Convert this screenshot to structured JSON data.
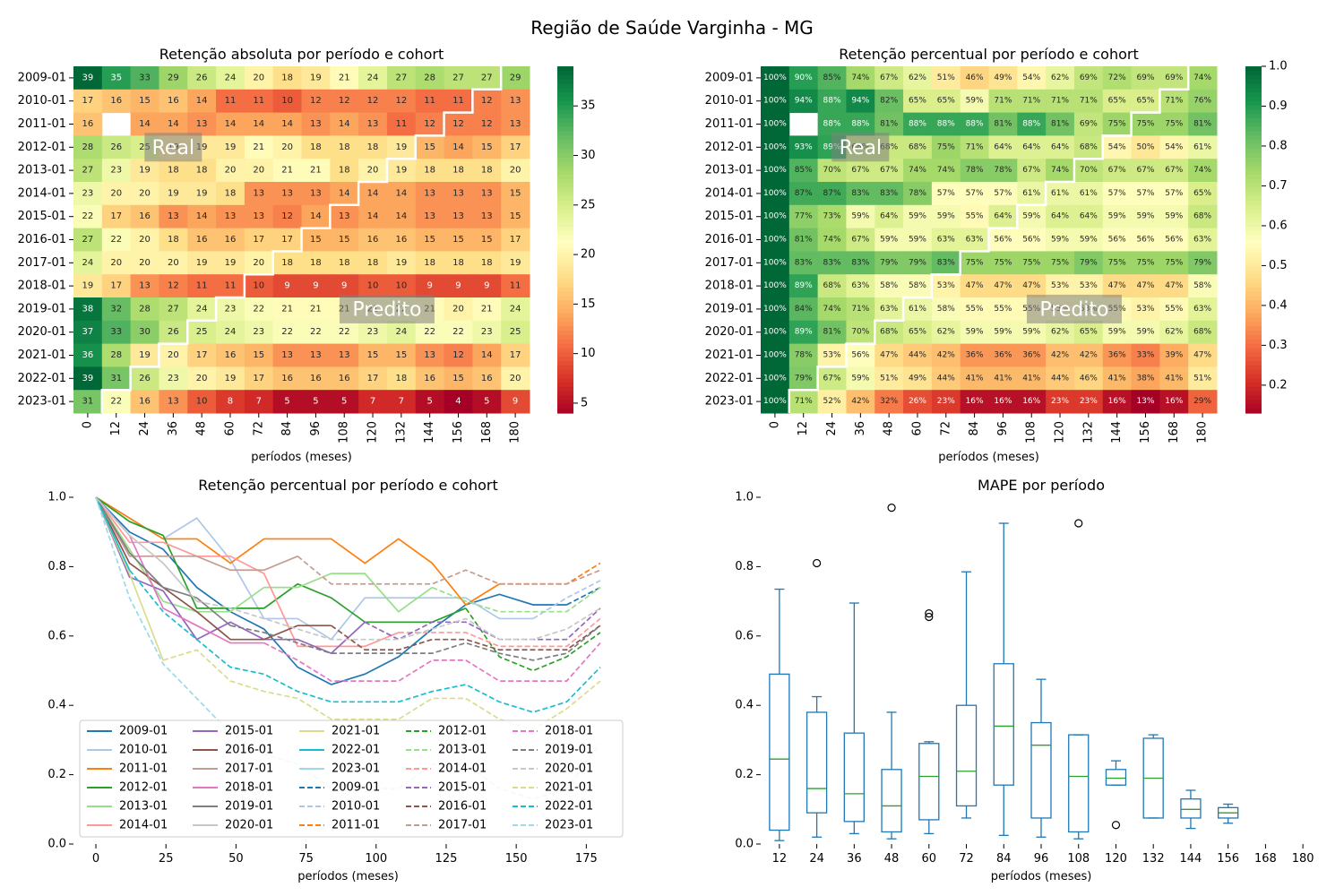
{
  "suptitle": "Região de Saúde Varginha - MG",
  "chart_data": [
    {
      "type": "heatmap",
      "title": "Retenção absoluta por período e cohort",
      "xlabel": "períodos (meses)",
      "ylabel": "",
      "x": [
        "0",
        "12",
        "24",
        "36",
        "48",
        "60",
        "72",
        "84",
        "96",
        "108",
        "120",
        "132",
        "144",
        "156",
        "168",
        "180"
      ],
      "y": [
        "2009-01",
        "2010-01",
        "2011-01",
        "2012-01",
        "2013-01",
        "2014-01",
        "2015-01",
        "2016-01",
        "2017-01",
        "2018-01",
        "2019-01",
        "2020-01",
        "2021-01",
        "2022-01",
        "2023-01"
      ],
      "values": [
        [
          39,
          35,
          33,
          29,
          26,
          24,
          20,
          18,
          19,
          21,
          24,
          27,
          28,
          27,
          27,
          29
        ],
        [
          17,
          16,
          15,
          16,
          14,
          11,
          11,
          10,
          12,
          12,
          12,
          12,
          11,
          11,
          12,
          13
        ],
        [
          16,
          null,
          14,
          14,
          13,
          14,
          14,
          14,
          13,
          14,
          13,
          11,
          12,
          12,
          12,
          13
        ],
        [
          28,
          26,
          25,
          19,
          19,
          19,
          21,
          20,
          18,
          18,
          18,
          19,
          15,
          14,
          15,
          17
        ],
        [
          27,
          23,
          19,
          18,
          18,
          20,
          20,
          21,
          21,
          18,
          20,
          19,
          18,
          18,
          18,
          20
        ],
        [
          23,
          20,
          20,
          19,
          19,
          18,
          13,
          13,
          13,
          14,
          14,
          14,
          13,
          13,
          13,
          15
        ],
        [
          22,
          17,
          16,
          13,
          14,
          13,
          13,
          12,
          14,
          13,
          14,
          14,
          13,
          13,
          13,
          15
        ],
        [
          27,
          22,
          20,
          18,
          16,
          16,
          17,
          17,
          15,
          15,
          16,
          16,
          15,
          15,
          15,
          17
        ],
        [
          24,
          20,
          20,
          20,
          19,
          19,
          20,
          18,
          18,
          18,
          18,
          19,
          18,
          18,
          18,
          19
        ],
        [
          19,
          17,
          13,
          12,
          11,
          11,
          10,
          9,
          9,
          9,
          10,
          10,
          9,
          9,
          9,
          11
        ],
        [
          38,
          32,
          28,
          27,
          24,
          23,
          22,
          21,
          21,
          21,
          21,
          22,
          21,
          20,
          21,
          24
        ],
        [
          37,
          33,
          30,
          26,
          25,
          24,
          23,
          22,
          22,
          22,
          23,
          24,
          22,
          22,
          23,
          25
        ],
        [
          36,
          28,
          19,
          20,
          17,
          16,
          15,
          13,
          13,
          13,
          15,
          15,
          13,
          12,
          14,
          17
        ],
        [
          39,
          31,
          26,
          23,
          20,
          19,
          17,
          16,
          16,
          16,
          17,
          18,
          16,
          15,
          16,
          20
        ],
        [
          31,
          22,
          16,
          13,
          10,
          8,
          7,
          5,
          5,
          5,
          7,
          7,
          5,
          4,
          5,
          9
        ]
      ],
      "colorbar": {
        "min": 4,
        "max": 39,
        "ticks": [
          "5",
          "10",
          "15",
          "20",
          "25",
          "30",
          "35"
        ]
      },
      "cmap": "RdYlGn",
      "annotations": [
        "Real",
        "Predito"
      ],
      "boundary": [
        15,
        14,
        13,
        12,
        11,
        10,
        9,
        8,
        7,
        6,
        5,
        4,
        3,
        2,
        1
      ]
    },
    {
      "type": "heatmap",
      "title": "Retenção percentual por período e cohort",
      "xlabel": "períodos (meses)",
      "ylabel": "",
      "x": [
        "0",
        "12",
        "24",
        "36",
        "48",
        "60",
        "72",
        "84",
        "96",
        "108",
        "120",
        "132",
        "144",
        "156",
        "168",
        "180"
      ],
      "y": [
        "2009-01",
        "2010-01",
        "2011-01",
        "2012-01",
        "2013-01",
        "2014-01",
        "2015-01",
        "2016-01",
        "2017-01",
        "2018-01",
        "2019-01",
        "2020-01",
        "2021-01",
        "2022-01",
        "2023-01"
      ],
      "values": [
        [
          100,
          90,
          85,
          74,
          67,
          62,
          51,
          46,
          49,
          54,
          62,
          69,
          72,
          69,
          69,
          74
        ],
        [
          100,
          94,
          88,
          94,
          82,
          65,
          65,
          59,
          71,
          71,
          71,
          71,
          65,
          65,
          71,
          76
        ],
        [
          100,
          null,
          88,
          88,
          81,
          88,
          88,
          88,
          81,
          88,
          81,
          69,
          75,
          75,
          75,
          81
        ],
        [
          100,
          93,
          89,
          68,
          68,
          68,
          75,
          71,
          64,
          64,
          64,
          68,
          54,
          50,
          54,
          61
        ],
        [
          100,
          85,
          70,
          67,
          67,
          74,
          74,
          78,
          78,
          67,
          74,
          70,
          67,
          67,
          67,
          74
        ],
        [
          100,
          87,
          87,
          83,
          83,
          78,
          57,
          57,
          57,
          61,
          61,
          61,
          57,
          57,
          57,
          65
        ],
        [
          100,
          77,
          73,
          59,
          64,
          59,
          59,
          55,
          64,
          59,
          64,
          64,
          59,
          59,
          59,
          68
        ],
        [
          100,
          81,
          74,
          67,
          59,
          59,
          63,
          63,
          56,
          56,
          59,
          59,
          56,
          56,
          56,
          63
        ],
        [
          100,
          83,
          83,
          83,
          79,
          79,
          83,
          75,
          75,
          75,
          75,
          79,
          75,
          75,
          75,
          79
        ],
        [
          100,
          89,
          68,
          63,
          58,
          58,
          53,
          47,
          47,
          47,
          53,
          53,
          47,
          47,
          47,
          58
        ],
        [
          100,
          84,
          74,
          71,
          63,
          61,
          58,
          55,
          55,
          55,
          55,
          58,
          55,
          53,
          55,
          63
        ],
        [
          100,
          89,
          81,
          70,
          68,
          65,
          62,
          59,
          59,
          59,
          62,
          65,
          59,
          59,
          62,
          68
        ],
        [
          100,
          78,
          53,
          56,
          47,
          44,
          42,
          36,
          36,
          36,
          42,
          42,
          36,
          33,
          39,
          47
        ],
        [
          100,
          79,
          67,
          59,
          51,
          49,
          44,
          41,
          41,
          41,
          44,
          46,
          41,
          38,
          41,
          51
        ],
        [
          100,
          71,
          52,
          42,
          32,
          26,
          23,
          16,
          16,
          16,
          23,
          23,
          16,
          13,
          16,
          29
        ]
      ],
      "colorbar": {
        "min": 0.13,
        "max": 1.0,
        "ticks": [
          "0.2",
          "0.3",
          "0.4",
          "0.5",
          "0.6",
          "0.7",
          "0.8",
          "0.9",
          "1.0"
        ]
      },
      "cmap": "RdYlGn",
      "annotations": [
        "Real",
        "Predito"
      ],
      "boundary": [
        15,
        14,
        13,
        12,
        11,
        10,
        9,
        8,
        7,
        6,
        5,
        4,
        3,
        2,
        1
      ]
    },
    {
      "type": "line",
      "title": "Retenção percentual por período e cohort",
      "xlabel": "períodos (meses)",
      "ylabel": "",
      "x": [
        0,
        12,
        24,
        36,
        48,
        60,
        72,
        84,
        96,
        108,
        120,
        132,
        144,
        156,
        168,
        180
      ],
      "xlim": [
        -8,
        188
      ],
      "ylim": [
        0,
        1.0
      ],
      "xticks": [
        "0",
        "25",
        "50",
        "75",
        "100",
        "125",
        "150",
        "175"
      ],
      "yticks": [
        "0.0",
        "0.2",
        "0.4",
        "0.6",
        "0.8",
        "1.0"
      ],
      "legend_position": "lower-center",
      "legend": [
        "2009-01",
        "2010-01",
        "2011-01",
        "2012-01",
        "2013-01",
        "2014-01",
        "2015-01",
        "2016-01",
        "2017-01",
        "2018-01",
        "2019-01",
        "2020-01",
        "2021-01",
        "2022-01",
        "2023-01",
        "2009-01",
        "2010-01",
        "2011-01",
        "2012-01",
        "2013-01",
        "2014-01",
        "2015-01",
        "2016-01",
        "2017-01",
        "2018-01",
        "2019-01",
        "2020-01",
        "2021-01",
        "2022-01",
        "2023-01"
      ],
      "colors": [
        "#1f77b4",
        "#aec7e8",
        "#ff7f0e",
        "#2ca02c",
        "#98df8a",
        "#ff9896",
        "#9467bd",
        "#8c564b",
        "#c49c94",
        "#e377c2",
        "#7f7f7f",
        "#c7c7c7",
        "#dbdb8d",
        "#17becf",
        "#9edae5"
      ]
    },
    {
      "type": "box",
      "title": "MAPE por período",
      "xlabel": "períodos (meses)",
      "ylabel": "",
      "categories": [
        "12",
        "24",
        "36",
        "48",
        "60",
        "72",
        "84",
        "96",
        "108",
        "120",
        "132",
        "144",
        "156",
        "168",
        "180"
      ],
      "ylim": [
        0,
        1.0
      ],
      "yticks": [
        "0.0",
        "0.2",
        "0.4",
        "0.6",
        "0.8",
        "1.0"
      ],
      "boxes": [
        {
          "min": 0.01,
          "q1": 0.04,
          "median": 0.245,
          "q3": 0.49,
          "max": 0.735,
          "outliers": []
        },
        {
          "min": 0.02,
          "q1": 0.09,
          "median": 0.16,
          "q3": 0.38,
          "max": 0.425,
          "outliers": [
            0.81
          ]
        },
        {
          "min": 0.03,
          "q1": 0.065,
          "median": 0.145,
          "q3": 0.32,
          "max": 0.695,
          "outliers": []
        },
        {
          "min": 0.015,
          "q1": 0.035,
          "median": 0.11,
          "q3": 0.215,
          "max": 0.38,
          "outliers": [
            0.97
          ]
        },
        {
          "min": 0.03,
          "q1": 0.07,
          "median": 0.195,
          "q3": 0.29,
          "max": 0.295,
          "outliers": [
            0.655,
            0.665
          ]
        },
        {
          "min": 0.075,
          "q1": 0.11,
          "median": 0.21,
          "q3": 0.4,
          "max": 0.785,
          "outliers": []
        },
        {
          "min": 0.025,
          "q1": 0.17,
          "median": 0.34,
          "q3": 0.52,
          "max": 0.925,
          "outliers": []
        },
        {
          "min": 0.02,
          "q1": 0.075,
          "median": 0.285,
          "q3": 0.35,
          "max": 0.475,
          "outliers": []
        },
        {
          "min": 0.015,
          "q1": 0.035,
          "median": 0.195,
          "q3": 0.315,
          "max": 0.315,
          "outliers": [
            0.925
          ]
        },
        {
          "min": 0.17,
          "q1": 0.17,
          "median": 0.19,
          "q3": 0.215,
          "max": 0.24,
          "outliers": [
            0.055
          ]
        },
        {
          "min": 0.075,
          "q1": 0.075,
          "median": 0.19,
          "q3": 0.305,
          "max": 0.315,
          "outliers": []
        },
        {
          "min": 0.045,
          "q1": 0.075,
          "median": 0.1,
          "q3": 0.13,
          "max": 0.155,
          "outliers": []
        },
        {
          "min": 0.06,
          "q1": 0.075,
          "median": 0.09,
          "q3": 0.105,
          "max": 0.115,
          "outliers": []
        },
        null,
        null
      ]
    }
  ]
}
